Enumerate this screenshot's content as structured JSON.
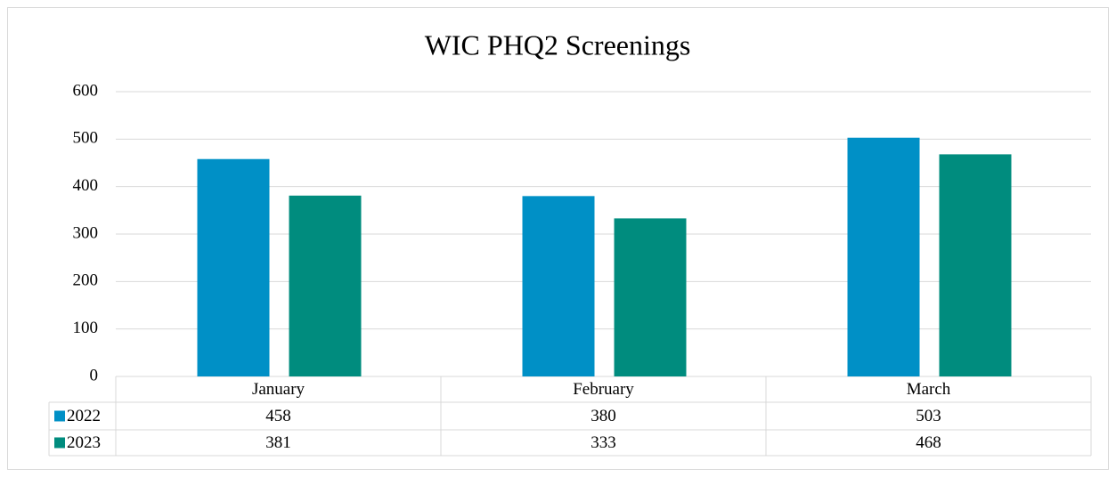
{
  "chart_data": {
    "type": "bar",
    "title": "WIC PHQ2 Screenings",
    "categories": [
      "January",
      "February",
      "March"
    ],
    "series": [
      {
        "name": "2022",
        "color": "#0090c6",
        "values": [
          458,
          380,
          503
        ]
      },
      {
        "name": "2023",
        "color": "#008c7e",
        "values": [
          381,
          333,
          468
        ]
      }
    ],
    "ylim": [
      0,
      600
    ],
    "yticks": [
      0,
      100,
      200,
      300,
      400,
      500,
      600
    ],
    "grid": true,
    "data_table": true
  }
}
